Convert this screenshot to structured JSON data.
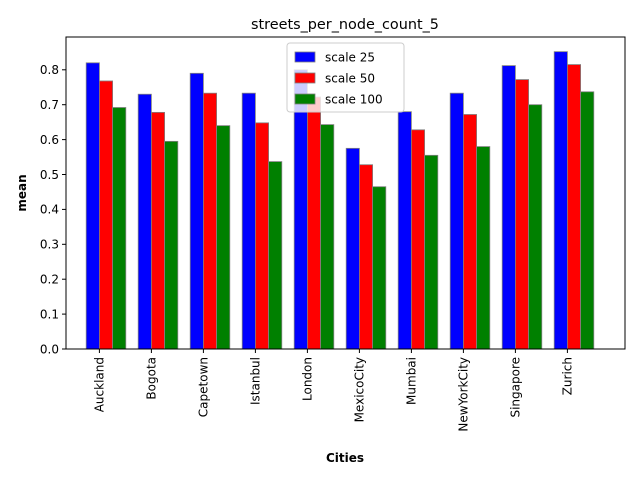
{
  "chart_data": {
    "type": "bar",
    "title": "streets_per_node_count_5",
    "xlabel": "Cities",
    "ylabel": "mean",
    "categories": [
      "Auckland",
      "Bogota",
      "Capetown",
      "Istanbul",
      "London",
      "MexicoCity",
      "Mumbai",
      "NewYorkCity",
      "Singapore",
      "Zurich"
    ],
    "series": [
      {
        "name": "scale 25",
        "color": "#0000ff",
        "values": [
          0.82,
          0.73,
          0.79,
          0.733,
          0.8,
          0.575,
          0.68,
          0.733,
          0.812,
          0.852
        ]
      },
      {
        "name": "scale 50",
        "color": "#ff0000",
        "values": [
          0.768,
          0.678,
          0.733,
          0.648,
          0.722,
          0.528,
          0.628,
          0.672,
          0.772,
          0.815
        ]
      },
      {
        "name": "scale 100",
        "color": "#008000",
        "values": [
          0.692,
          0.595,
          0.64,
          0.537,
          0.643,
          0.465,
          0.555,
          0.58,
          0.7,
          0.737
        ]
      }
    ],
    "ylim": [
      0,
      0.894
    ],
    "yticks": [
      "0.0",
      "0.1",
      "0.2",
      "0.3",
      "0.4",
      "0.5",
      "0.6",
      "0.7",
      "0.8"
    ],
    "legend_position": "top-center",
    "grid": false
  }
}
